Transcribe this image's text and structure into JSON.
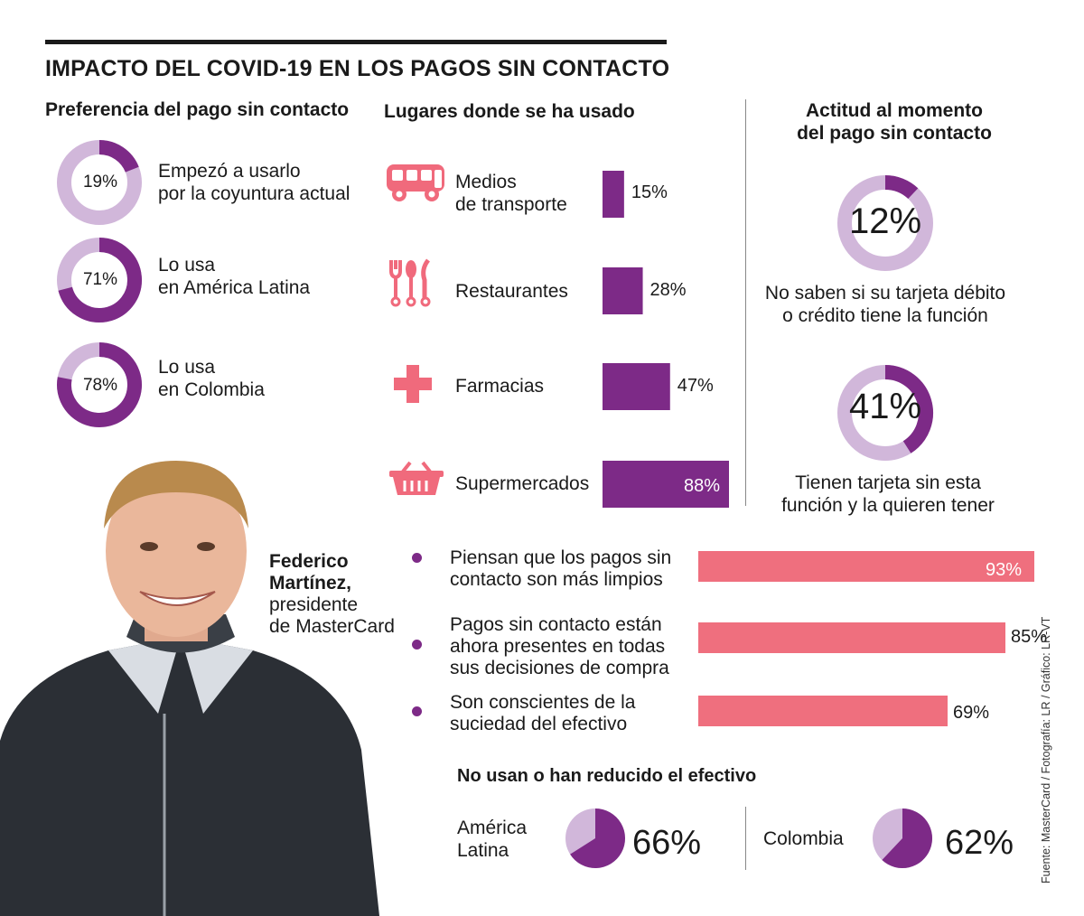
{
  "title": "IMPACTO DEL COVID-19 EN LOS PAGOS SIN CONTACTO",
  "colors": {
    "purple": "#7d2a87",
    "lilac": "#d1b7da",
    "pink": "#f06a7c",
    "bar_pink": "#ef6f7e"
  },
  "preference": {
    "heading": "Preferencia del pago sin contacto",
    "items": [
      {
        "pct_label": "19%",
        "value": 19,
        "label_line1": "Empezó a usarlo",
        "label_line2": "por la coyuntura actual"
      },
      {
        "pct_label": "71%",
        "value": 71,
        "label_line1": "Lo usa",
        "label_line2": "en América Latina"
      },
      {
        "pct_label": "78%",
        "value": 78,
        "label_line1": "Lo usa",
        "label_line2": "en Colombia"
      }
    ]
  },
  "places": {
    "heading": "Lugares donde se ha usado",
    "items": [
      {
        "icon": "bus-icon",
        "label_line1": "Medios",
        "label_line2": "de transporte",
        "value": 15,
        "pct_label": "15%"
      },
      {
        "icon": "cutlery-icon",
        "label_line1": "Restaurantes",
        "label_line2": "",
        "value": 28,
        "pct_label": "28%"
      },
      {
        "icon": "pharmacy-cross-icon",
        "label_line1": "Farmacias",
        "label_line2": "",
        "value": 47,
        "pct_label": "47%"
      },
      {
        "icon": "shopping-basket-icon",
        "label_line1": "Supermercados",
        "label_line2": "",
        "value": 88,
        "pct_label": "88%"
      }
    ]
  },
  "attitude": {
    "heading_line1": "Actitud al momento",
    "heading_line2": "del pago sin contacto",
    "items": [
      {
        "pct_label": "12%",
        "value": 12,
        "label_line1": "No saben si su tarjeta débito",
        "label_line2": "o crédito tiene la función"
      },
      {
        "pct_label": "41%",
        "value": 41,
        "label_line1": "Tienen tarjeta sin esta",
        "label_line2": "función y la quieren tener"
      }
    ]
  },
  "person": {
    "name_line1": "Federico",
    "name_line2": "Martínez,",
    "role_line1": "presidente",
    "role_line2": "de MasterCard"
  },
  "statements": [
    {
      "lines": [
        "Piensan que los pagos sin",
        "contacto son más limpios"
      ],
      "value": 93,
      "pct_label": "93%"
    },
    {
      "lines": [
        "Pagos sin contacto están",
        "ahora presentes en todas",
        "sus decisiones de compra"
      ],
      "value": 85,
      "pct_label": "85%"
    },
    {
      "lines": [
        "Son conscientes de la",
        "suciedad del efectivo"
      ],
      "value": 69,
      "pct_label": "69%"
    }
  ],
  "cash": {
    "heading": "No usan o han reducido el efectivo",
    "items": [
      {
        "label_line1": "América",
        "label_line2": "Latina",
        "value": 66,
        "pct_label": "66%"
      },
      {
        "label_line1": "Colombia",
        "label_line2": "",
        "value": 62,
        "pct_label": "62%"
      }
    ]
  },
  "credit": "Fuente: MasterCard / Fotografía: LR / Gráfico: LR-VT",
  "chart_data": [
    {
      "type": "pie",
      "title": "Preferencia del pago sin contacto",
      "categories": [
        "Empezó a usarlo por la coyuntura actual",
        "Lo usa en América Latina",
        "Lo usa en Colombia"
      ],
      "values": [
        19,
        71,
        78
      ],
      "unit": "%"
    },
    {
      "type": "bar",
      "title": "Lugares donde se ha usado",
      "categories": [
        "Medios de transporte",
        "Restaurantes",
        "Farmacias",
        "Supermercados"
      ],
      "values": [
        15,
        28,
        47,
        88
      ],
      "unit": "%"
    },
    {
      "type": "pie",
      "title": "Actitud al momento del pago sin contacto",
      "categories": [
        "No saben si su tarjeta débito o crédito tiene la función",
        "Tienen tarjeta sin esta función y la quieren tener"
      ],
      "values": [
        12,
        41
      ],
      "unit": "%"
    },
    {
      "type": "bar",
      "title": "",
      "categories": [
        "Piensan que los pagos sin contacto son más limpios",
        "Pagos sin contacto están ahora presentes en todas sus decisiones de compra",
        "Son conscientes de la suciedad del efectivo"
      ],
      "values": [
        93,
        85,
        69
      ],
      "unit": "%"
    },
    {
      "type": "pie",
      "title": "No usan o han reducido el efectivo",
      "categories": [
        "América Latina",
        "Colombia"
      ],
      "values": [
        66,
        62
      ],
      "unit": "%"
    }
  ]
}
